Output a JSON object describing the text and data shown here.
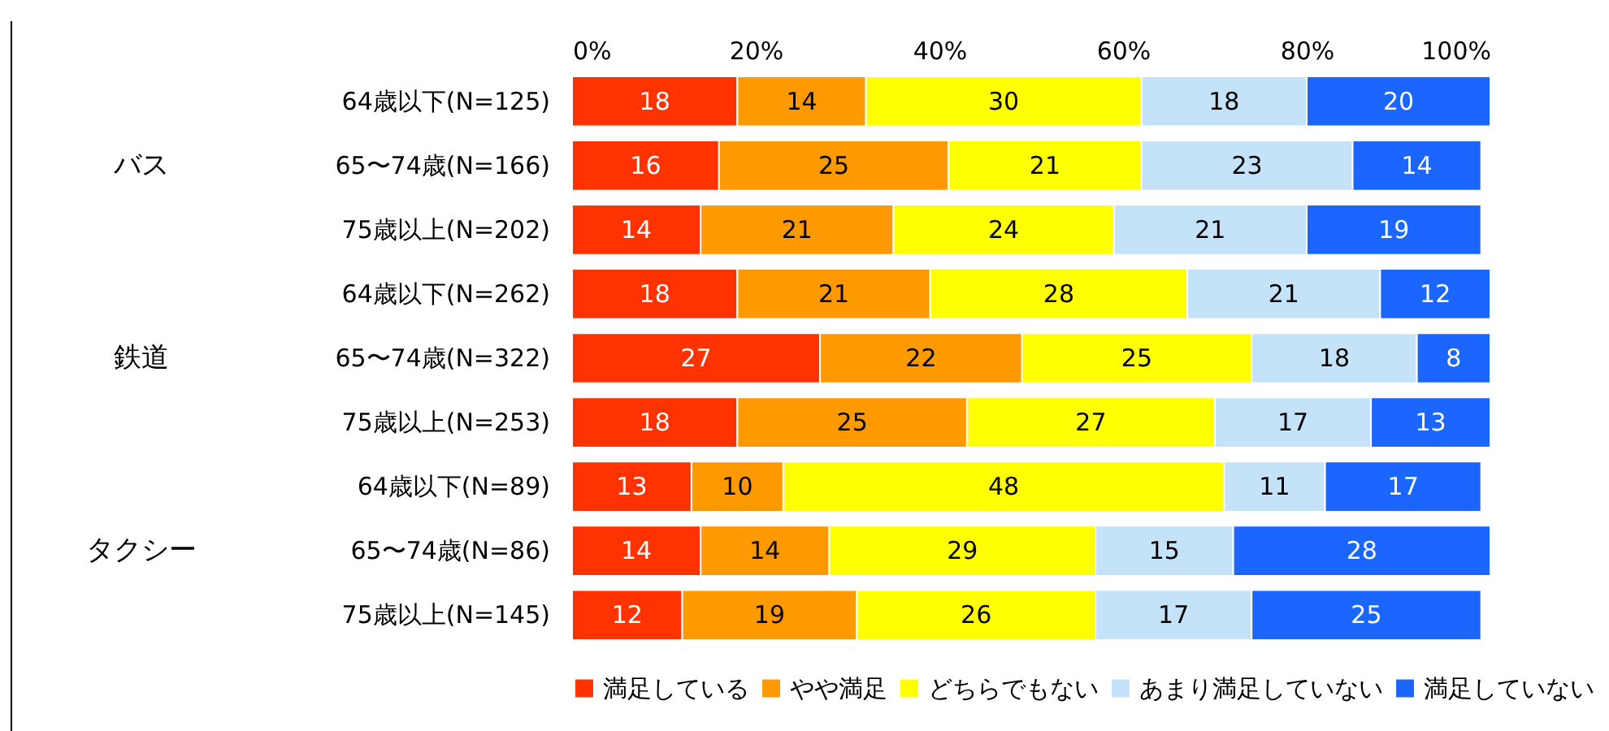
{
  "chart_data": {
    "type": "bar",
    "orientation": "horizontal",
    "stacked": true,
    "categories": [
      "64歳以下(N=125)",
      "65〜74歳(N=166)",
      "75歳以上(N=202)",
      "64歳以下(N=262)",
      "65〜74歳(N=322)",
      "75歳以上(N=253)",
      "64歳以下(N=89)",
      "65〜74歳(N=86)",
      "75歳以上(N=145)"
    ],
    "series": [
      {
        "name": "満足している",
        "color": "#ff3300",
        "values": [
          18,
          16,
          14,
          18,
          27,
          18,
          13,
          14,
          12
        ]
      },
      {
        "name": "やや満足",
        "color": "#ff9900",
        "values": [
          14,
          25,
          21,
          21,
          22,
          25,
          10,
          14,
          19
        ]
      },
      {
        "name": "どちらでもない",
        "color": "#ffff00",
        "values": [
          30,
          21,
          24,
          28,
          25,
          27,
          48,
          29,
          26
        ]
      },
      {
        "name": "あまり満足していない",
        "color": "#c5e3f8",
        "values": [
          18,
          23,
          21,
          21,
          18,
          17,
          11,
          15,
          17
        ]
      },
      {
        "name": "満足していない",
        "color": "#1a66ff",
        "values": [
          20,
          14,
          19,
          12,
          8,
          13,
          17,
          28,
          25
        ]
      }
    ],
    "xlim": [
      0,
      100
    ],
    "xticks": [
      {
        "value": 0,
        "label": "0%"
      },
      {
        "value": 20,
        "label": "20%"
      },
      {
        "value": 40,
        "label": "40%"
      },
      {
        "value": 60,
        "label": "60%"
      },
      {
        "value": 80,
        "label": "80%"
      },
      {
        "value": 100,
        "label": "100%"
      }
    ],
    "annotations": [
      "バス",
      "鉄道",
      "タクシー"
    ],
    "data_labels": true,
    "grid": false,
    "legend": "bottom"
  }
}
